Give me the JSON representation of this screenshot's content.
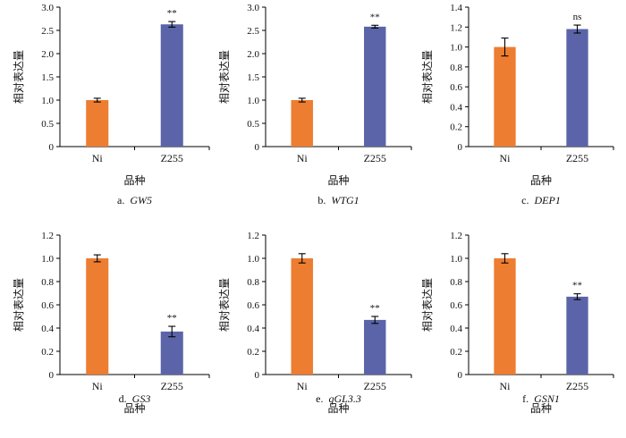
{
  "figure": {
    "colors": {
      "ni": "#ed7d31",
      "z255": "#5b64a8",
      "axis": "#000000"
    }
  },
  "chart_data": [
    {
      "type": "bar",
      "panel_label": "a.",
      "gene": "GW5",
      "categories": [
        "Ni",
        "Z255"
      ],
      "values": [
        1.0,
        2.63
      ],
      "errors": [
        0.04,
        0.06
      ],
      "significance": [
        "",
        "**"
      ],
      "xlabel": "品种",
      "ylabel": "相对表达量",
      "ylim": [
        0,
        3.0
      ],
      "yticks": [
        "0",
        "0.5",
        "1.0",
        "1.5",
        "2.0",
        "2.5",
        "3.0"
      ],
      "grid": false
    },
    {
      "type": "bar",
      "panel_label": "b.",
      "gene": "WTG1",
      "categories": [
        "Ni",
        "Z255"
      ],
      "values": [
        1.0,
        2.58
      ],
      "errors": [
        0.04,
        0.03
      ],
      "significance": [
        "",
        "**"
      ],
      "xlabel": "品种",
      "ylabel": "相对表达量",
      "ylim": [
        0,
        3.0
      ],
      "yticks": [
        "0",
        "0.5",
        "1.0",
        "1.5",
        "2.0",
        "2.5",
        "3.0"
      ],
      "grid": false
    },
    {
      "type": "bar",
      "panel_label": "c.",
      "gene": "DEP1",
      "categories": [
        "Ni",
        "Z255"
      ],
      "values": [
        1.0,
        1.18
      ],
      "errors": [
        0.09,
        0.04
      ],
      "significance": [
        "",
        "ns"
      ],
      "xlabel": "品种",
      "ylabel": "相对表达量",
      "ylim": [
        0,
        1.4
      ],
      "yticks": [
        "0",
        "0.2",
        "0.4",
        "0.6",
        "0.8",
        "1.0",
        "1.2",
        "1.4"
      ],
      "grid": false
    },
    {
      "type": "bar",
      "panel_label": "d.",
      "gene": "GS3",
      "categories": [
        "Ni",
        "Z255"
      ],
      "values": [
        1.0,
        0.37
      ],
      "errors": [
        0.03,
        0.045
      ],
      "significance": [
        "",
        "**"
      ],
      "xlabel": "品种",
      "ylabel": "相对表达量",
      "ylim": [
        0,
        1.2
      ],
      "yticks": [
        "0",
        "0.2",
        "0.4",
        "0.6",
        "0.8",
        "1.0",
        "1.2"
      ],
      "grid": false
    },
    {
      "type": "bar",
      "panel_label": "e.",
      "gene": "qGL3.3",
      "categories": [
        "Ni",
        "Z255"
      ],
      "values": [
        1.0,
        0.47
      ],
      "errors": [
        0.04,
        0.03
      ],
      "significance": [
        "",
        "**"
      ],
      "xlabel": "品种",
      "ylabel": "相对表达量",
      "ylim": [
        0,
        1.2
      ],
      "yticks": [
        "0",
        "0.2",
        "0.4",
        "0.6",
        "0.8",
        "1.0",
        "1.2"
      ],
      "grid": false
    },
    {
      "type": "bar",
      "panel_label": "f.",
      "gene": "GSN1",
      "categories": [
        "Ni",
        "Z255"
      ],
      "values": [
        1.0,
        0.67
      ],
      "errors": [
        0.04,
        0.025
      ],
      "significance": [
        "",
        "**"
      ],
      "xlabel": "品种",
      "ylabel": "相对表达量",
      "ylim": [
        0,
        1.2
      ],
      "yticks": [
        "0",
        "0.2",
        "0.4",
        "0.6",
        "0.8",
        "1.0",
        "1.2"
      ],
      "grid": false
    }
  ]
}
